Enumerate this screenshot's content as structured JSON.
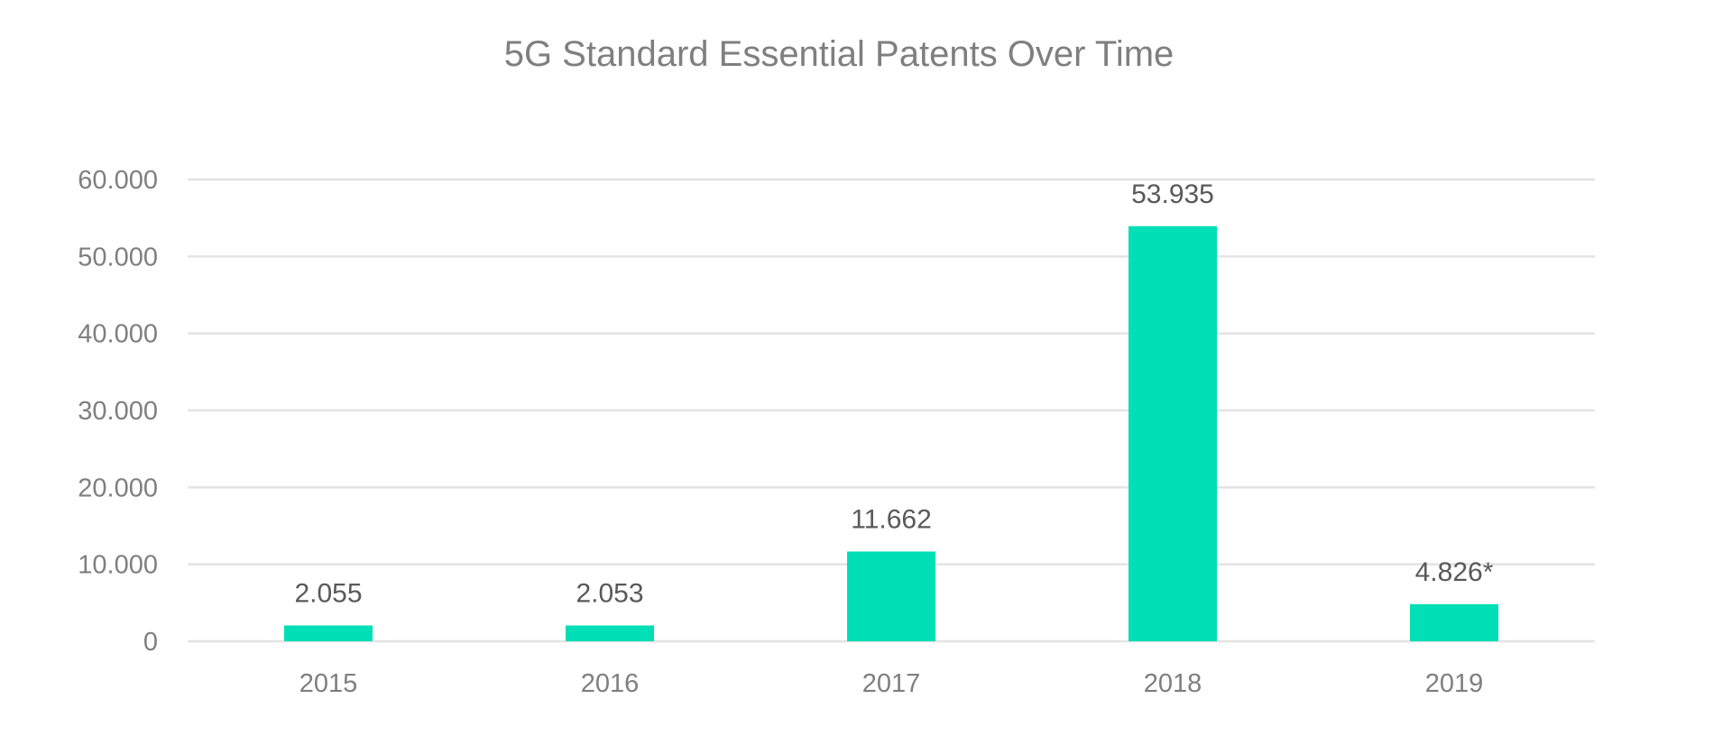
{
  "chart_data": {
    "type": "bar",
    "title": "5G Standard Essential Patents Over Time",
    "xlabel": "",
    "ylabel": "",
    "categories": [
      "2015",
      "2016",
      "2017",
      "2018",
      "2019"
    ],
    "values": [
      2055,
      2053,
      11662,
      53935,
      4826
    ],
    "data_labels": [
      "2.055",
      "2.053",
      "11.662",
      "53.935",
      "4.826*"
    ],
    "y_ticks": [
      0,
      10000,
      20000,
      30000,
      40000,
      50000,
      60000
    ],
    "y_tick_labels": [
      "0",
      "10.000",
      "20.000",
      "30.000",
      "40.000",
      "50.000",
      "60.000"
    ],
    "ylim": [
      0,
      60000
    ],
    "grid": true,
    "legend": "none",
    "colors": {
      "bar": "#00DFB5",
      "grid": "#e3e3e3",
      "text": "#7f7f7f",
      "label": "#595959"
    }
  }
}
